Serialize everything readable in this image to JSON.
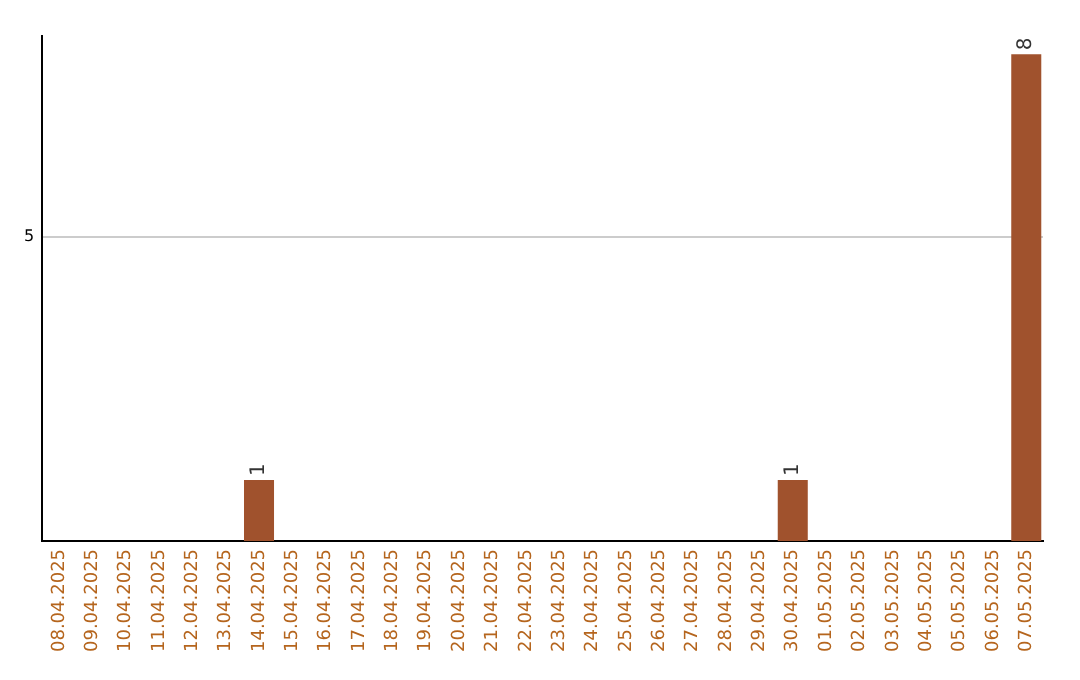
{
  "chart_data": {
    "type": "bar",
    "categories": [
      "08.04.2025",
      "09.04.2025",
      "10.04.2025",
      "11.04.2025",
      "12.04.2025",
      "13.04.2025",
      "14.04.2025",
      "15.04.2025",
      "16.04.2025",
      "17.04.2025",
      "18.04.2025",
      "19.04.2025",
      "20.04.2025",
      "21.04.2025",
      "22.04.2025",
      "23.04.2025",
      "24.04.2025",
      "25.04.2025",
      "26.04.2025",
      "27.04.2025",
      "28.04.2025",
      "29.04.2025",
      "30.04.2025",
      "01.05.2025",
      "02.05.2025",
      "03.05.2025",
      "04.05.2025",
      "05.05.2025",
      "06.05.2025",
      "07.05.2025"
    ],
    "values": [
      0,
      0,
      0,
      0,
      0,
      0,
      1,
      0,
      0,
      0,
      0,
      0,
      0,
      0,
      0,
      0,
      0,
      0,
      0,
      0,
      0,
      0,
      1,
      0,
      0,
      0,
      0,
      0,
      0,
      8
    ],
    "color": "#a0522d",
    "ylim": [
      0,
      8.3
    ],
    "yticks": [
      5
    ],
    "grid": "y",
    "value_labels": [
      null,
      null,
      null,
      null,
      null,
      null,
      "1",
      null,
      null,
      null,
      null,
      null,
      null,
      null,
      null,
      null,
      null,
      null,
      null,
      null,
      null,
      null,
      "1",
      null,
      null,
      null,
      null,
      null,
      null,
      "8"
    ],
    "legend": false
  }
}
